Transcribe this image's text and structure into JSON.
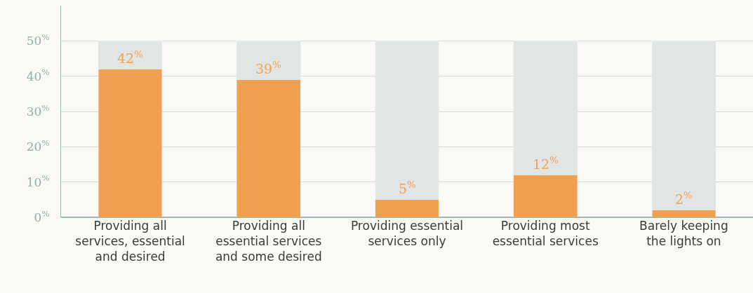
{
  "chart_data": {
    "type": "bar",
    "categories": [
      "Providing all services, essential and desired",
      "Providing all essential services and some desired",
      "Providing essential services only",
      "Providing most essential services",
      "Barely keeping the lights on"
    ],
    "series": [
      {
        "color": "#f0a150",
        "values": [
          42,
          39,
          5,
          12,
          2
        ],
        "value_labels": [
          "42$^{%}$",
          "39$^{%}$",
          "5$^{%}$",
          "12$^{%}$",
          "2$^{%}$"
        ]
      },
      {
        "color": "#e1e5e3",
        "values": [
          8,
          11,
          45,
          38,
          48
        ]
      }
    ],
    "stacked": true,
    "ylim": [
      0,
      60
    ],
    "yticks": [
      {
        "value": 0,
        "label": "0$^{%}$"
      },
      {
        "value": 10,
        "label": "10$^{%}$"
      },
      {
        "value": 20,
        "label": "20$^{%}$"
      },
      {
        "value": 30,
        "label": "30$^{%}$"
      },
      {
        "value": 40,
        "label": "40$^{%}$"
      },
      {
        "value": 50,
        "label": "50$^{%}$"
      }
    ],
    "grid": "y"
  }
}
